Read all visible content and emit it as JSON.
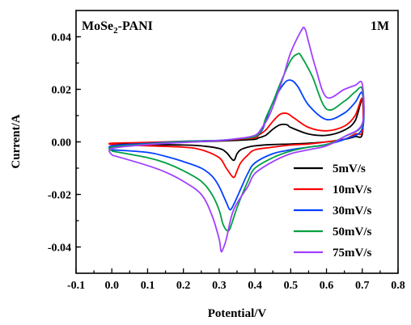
{
  "chart_data": {
    "type": "line",
    "xlabel": "Potential/V",
    "ylabel": "Current/A",
    "xlim": [
      -0.1,
      0.8
    ],
    "ylim": [
      -0.05,
      0.05
    ],
    "x_ticks": [
      "-0.1",
      "0.0",
      "0.1",
      "0.2",
      "0.3",
      "0.4",
      "0.5",
      "0.6",
      "0.7",
      "0.8"
    ],
    "y_ticks": [
      "-0.04",
      "-0.02",
      "0.00",
      "0.02",
      "0.04"
    ],
    "annotations": {
      "material": "MoSe",
      "material_sub": "2",
      "material_suffix": "-PANI",
      "concentration": "1M"
    },
    "legend_position": "right-middle",
    "series": [
      {
        "name": "5mV/s",
        "color": "#000000",
        "x": [
          0.0,
          0.1,
          0.2,
          0.25,
          0.3,
          0.32,
          0.34,
          0.35,
          0.36,
          0.38,
          0.4,
          0.45,
          0.5,
          0.55,
          0.6,
          0.65,
          0.68,
          0.7,
          0.7,
          0.68,
          0.65,
          0.6,
          0.55,
          0.5,
          0.49,
          0.47,
          0.45,
          0.43,
          0.41,
          0.4,
          0.35,
          0.3,
          0.2,
          0.1,
          0.0
        ],
        "y": [
          -0.001,
          -0.001,
          -0.0012,
          -0.0015,
          -0.0025,
          -0.004,
          -0.007,
          -0.0045,
          -0.003,
          -0.002,
          -0.0015,
          -0.001,
          -0.0008,
          -0.0005,
          0.0,
          0.001,
          0.002,
          0.003,
          0.016,
          0.008,
          0.0045,
          0.0025,
          0.003,
          0.0055,
          0.0065,
          0.0065,
          0.0048,
          0.0025,
          0.0015,
          0.001,
          0.0006,
          0.0003,
          -0.0001,
          -0.0004,
          -0.0006
        ]
      },
      {
        "name": "10mV/s",
        "color": "#ff0000",
        "x": [
          0.0,
          0.1,
          0.2,
          0.25,
          0.3,
          0.32,
          0.34,
          0.35,
          0.36,
          0.38,
          0.4,
          0.45,
          0.5,
          0.55,
          0.6,
          0.65,
          0.68,
          0.7,
          0.7,
          0.68,
          0.65,
          0.6,
          0.55,
          0.51,
          0.49,
          0.47,
          0.45,
          0.43,
          0.41,
          0.4,
          0.35,
          0.3,
          0.2,
          0.1,
          0.0
        ],
        "y": [
          -0.001,
          -0.0015,
          -0.002,
          -0.003,
          -0.006,
          -0.01,
          -0.0135,
          -0.011,
          -0.008,
          -0.005,
          -0.003,
          -0.002,
          -0.0012,
          -0.0008,
          0.0,
          0.001,
          0.003,
          0.004,
          0.0165,
          0.01,
          0.006,
          0.0042,
          0.0055,
          0.009,
          0.0108,
          0.0105,
          0.0078,
          0.0045,
          0.0025,
          0.0015,
          0.001,
          0.0005,
          0.0002,
          -0.0002,
          -0.0005
        ]
      },
      {
        "name": "30mV/s",
        "color": "#0040ff",
        "x": [
          0.0,
          0.1,
          0.15,
          0.2,
          0.25,
          0.28,
          0.3,
          0.32,
          0.33,
          0.34,
          0.36,
          0.38,
          0.4,
          0.45,
          0.5,
          0.55,
          0.6,
          0.65,
          0.7,
          0.7,
          0.68,
          0.65,
          0.6,
          0.55,
          0.52,
          0.5,
          0.48,
          0.45,
          0.43,
          0.42,
          0.4,
          0.35,
          0.3,
          0.2,
          0.1,
          0.0
        ],
        "y": [
          -0.003,
          -0.004,
          -0.0055,
          -0.0075,
          -0.01,
          -0.013,
          -0.017,
          -0.023,
          -0.0258,
          -0.024,
          -0.018,
          -0.012,
          -0.008,
          -0.0045,
          -0.003,
          -0.002,
          -0.001,
          0.001,
          0.005,
          0.0185,
          0.015,
          0.011,
          0.0085,
          0.014,
          0.021,
          0.0235,
          0.022,
          0.015,
          0.008,
          0.0045,
          0.002,
          0.0012,
          0.0006,
          0.0002,
          -0.0006,
          -0.0015
        ]
      },
      {
        "name": "50mV/s",
        "color": "#00a040",
        "x": [
          0.0,
          0.1,
          0.15,
          0.2,
          0.25,
          0.28,
          0.3,
          0.31,
          0.32,
          0.33,
          0.35,
          0.38,
          0.4,
          0.45,
          0.5,
          0.55,
          0.6,
          0.65,
          0.7,
          0.7,
          0.68,
          0.65,
          0.6,
          0.56,
          0.53,
          0.52,
          0.5,
          0.47,
          0.45,
          0.43,
          0.42,
          0.4,
          0.35,
          0.3,
          0.2,
          0.1,
          0.0
        ],
        "y": [
          -0.0035,
          -0.006,
          -0.008,
          -0.011,
          -0.015,
          -0.02,
          -0.026,
          -0.031,
          -0.0335,
          -0.033,
          -0.025,
          -0.015,
          -0.01,
          -0.006,
          -0.0035,
          -0.002,
          -0.001,
          0.002,
          0.0065,
          0.02,
          0.019,
          0.0155,
          0.0125,
          0.025,
          0.0325,
          0.0335,
          0.031,
          0.022,
          0.015,
          0.009,
          0.005,
          0.002,
          0.0012,
          0.0005,
          0.0001,
          -0.0008,
          -0.002
        ]
      },
      {
        "name": "75mV/s",
        "color": "#a040ff",
        "x": [
          0.0,
          0.1,
          0.15,
          0.2,
          0.25,
          0.28,
          0.3,
          0.305,
          0.31,
          0.32,
          0.34,
          0.38,
          0.4,
          0.45,
          0.5,
          0.55,
          0.6,
          0.65,
          0.7,
          0.7,
          0.68,
          0.65,
          0.6,
          0.57,
          0.55,
          0.54,
          0.53,
          0.5,
          0.48,
          0.46,
          0.44,
          0.42,
          0.4,
          0.35,
          0.3,
          0.2,
          0.1,
          0.0
        ],
        "y": [
          -0.005,
          -0.009,
          -0.0115,
          -0.015,
          -0.02,
          -0.028,
          -0.037,
          -0.0415,
          -0.041,
          -0.037,
          -0.026,
          -0.017,
          -0.012,
          -0.0075,
          -0.0045,
          -0.003,
          -0.0015,
          0.002,
          0.007,
          0.022,
          0.0215,
          0.02,
          0.017,
          0.028,
          0.038,
          0.043,
          0.0425,
          0.034,
          0.025,
          0.017,
          0.01,
          0.0055,
          0.0025,
          0.0012,
          0.0005,
          -0.0002,
          -0.001,
          -0.0025
        ]
      }
    ]
  }
}
